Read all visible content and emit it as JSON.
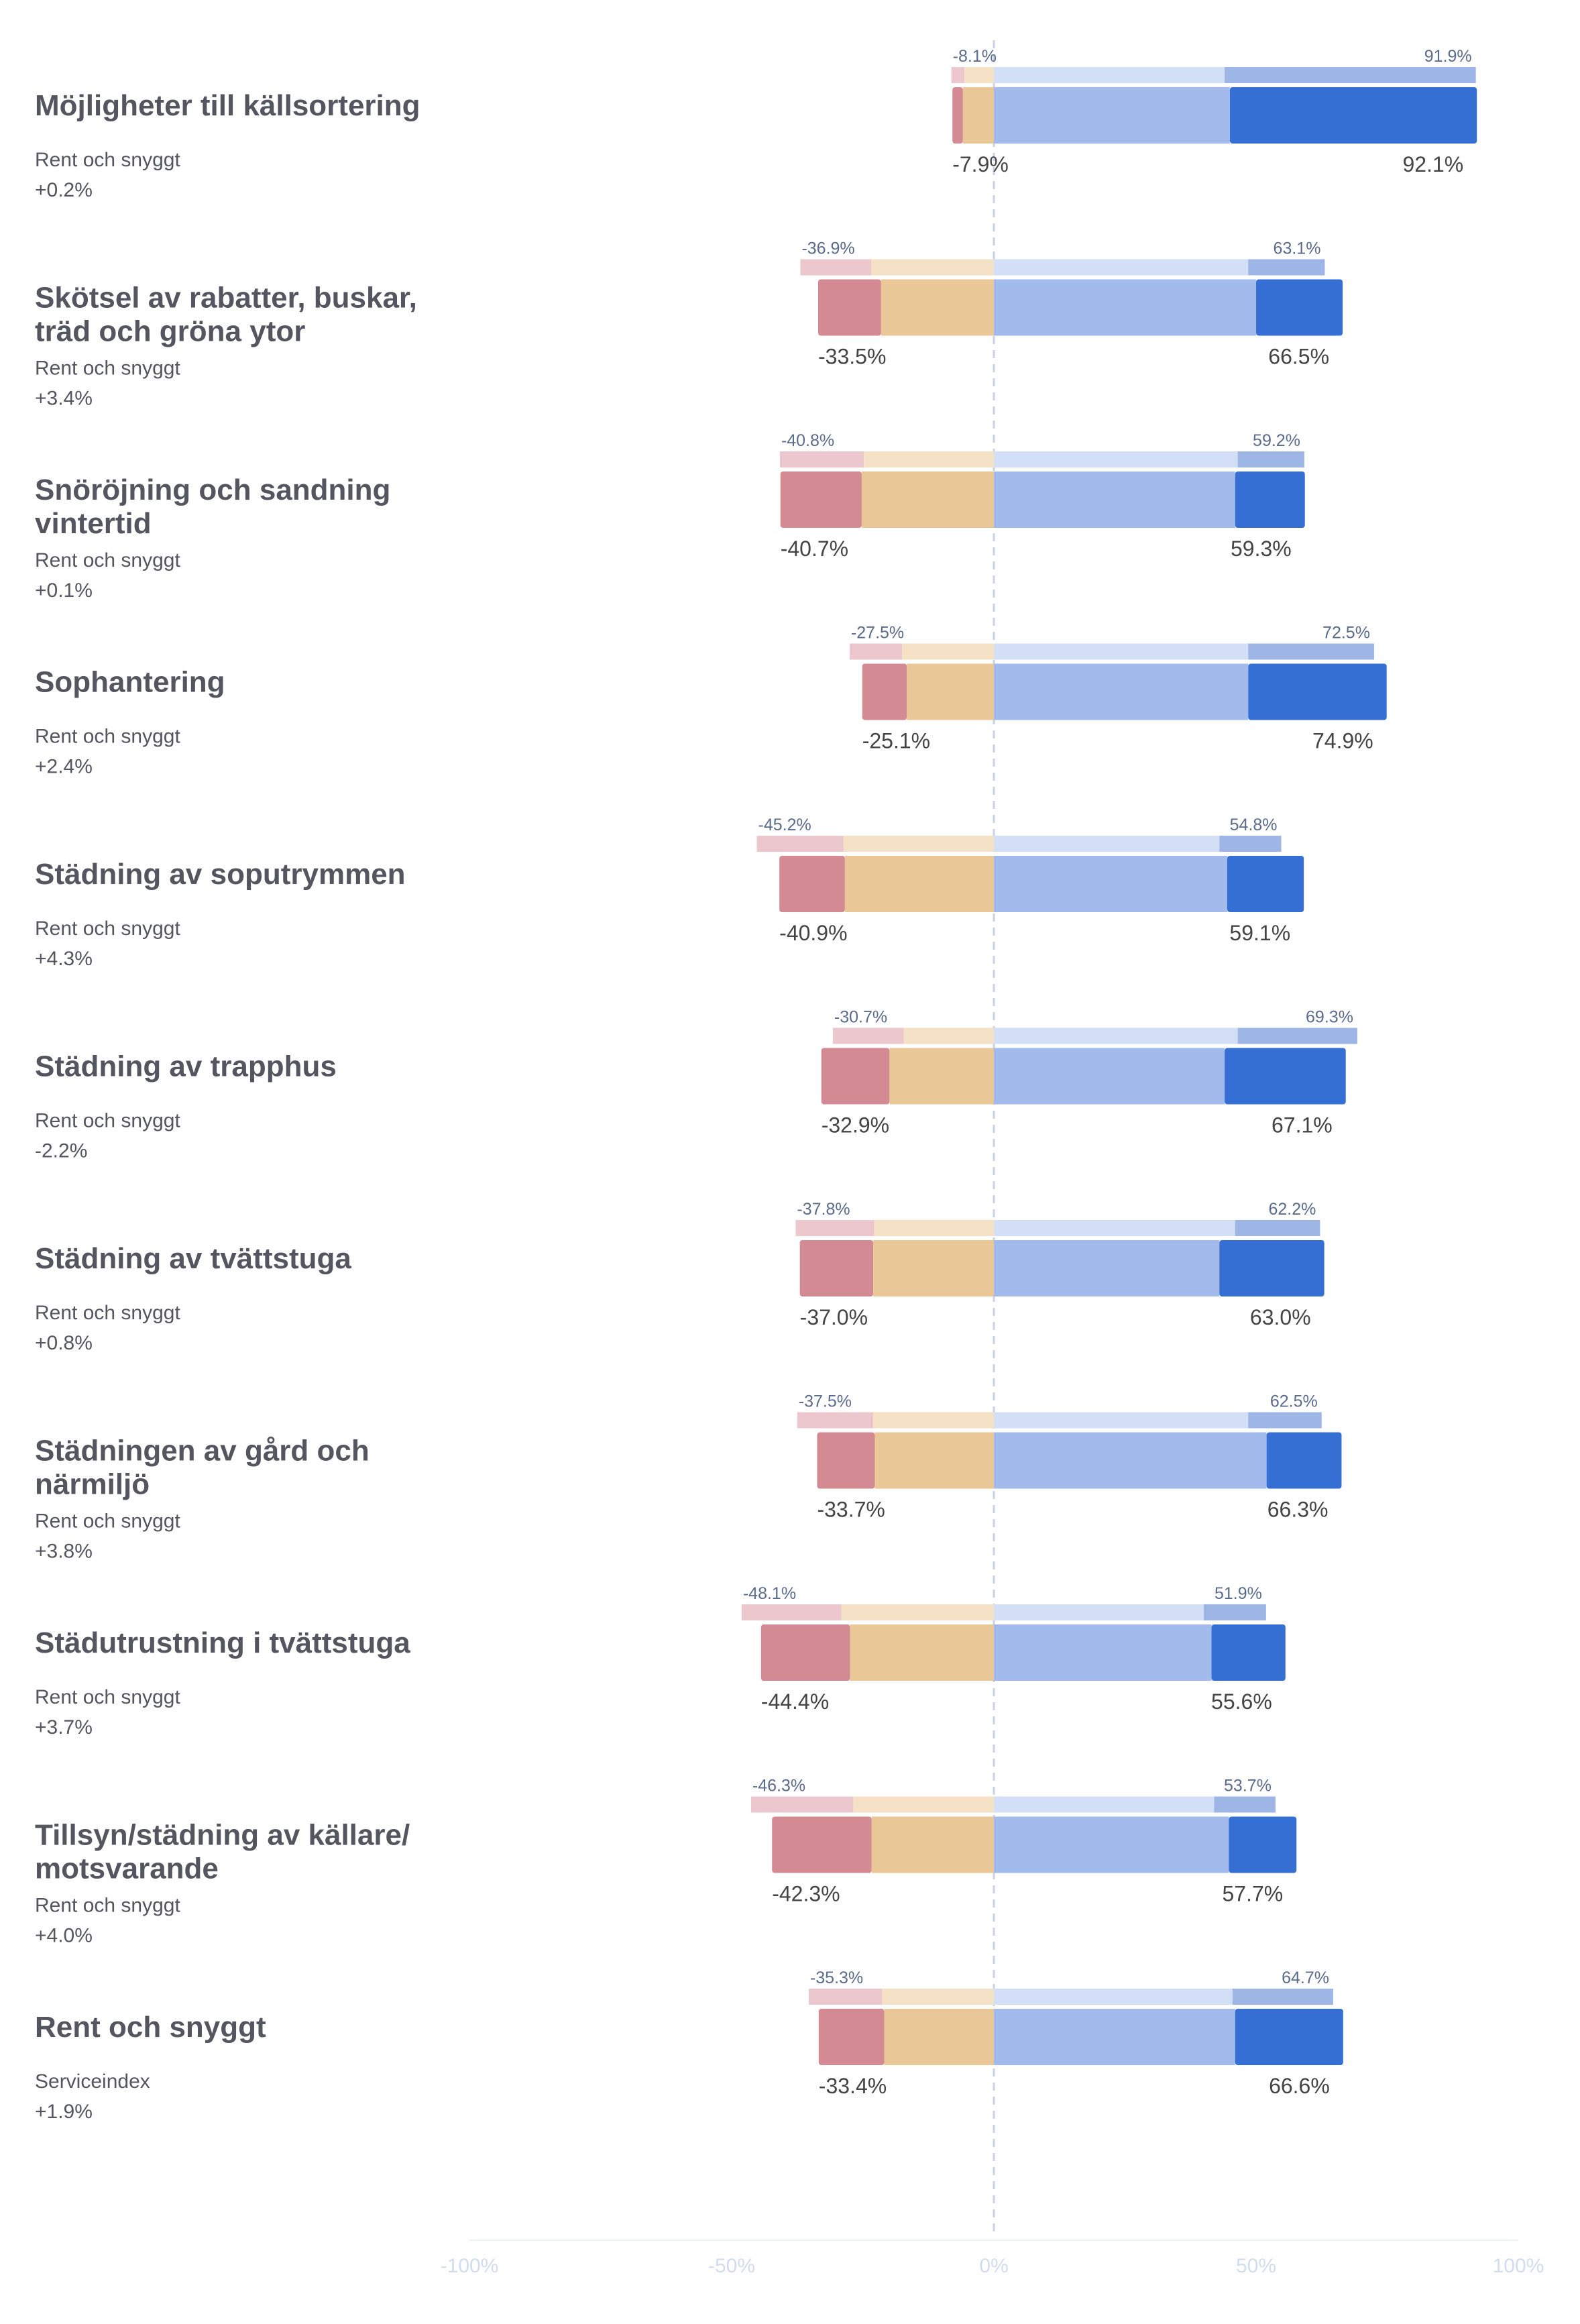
{
  "colors": {
    "neg_dark": "#d48a92",
    "neg_mid": "#eac796",
    "pos_mid": "#a2bbec",
    "pos_dark": "#366fd4",
    "prev_neg_dark": "#ecc7cd",
    "prev_neg_mid": "#f5e2c6",
    "prev_pos_mid": "#d2dff7",
    "prev_pos_dark": "#9db6e6",
    "axis_tick": "#d2dcef",
    "zero_line": "#c8d2e6"
  },
  "chart_data": {
    "type": "diverging-stacked-bar",
    "xlim": [
      -100,
      100
    ],
    "ticks": [
      "-100%",
      "-50%",
      "0%",
      "50%",
      "100%"
    ],
    "tick_values": [
      -100,
      -50,
      0,
      50,
      100
    ],
    "rows": [
      {
        "title": [
          "Möjligheter till källsortering"
        ],
        "subtitle": "Rent och snyggt",
        "delta": "+0.2%",
        "current": {
          "neg_dark": 2.0,
          "neg_total": 7.9,
          "pos_mid": 45.0,
          "pos_total": 92.1,
          "neg_label": "-7.9%",
          "pos_label": "92.1%"
        },
        "previous": {
          "neg_dark": 2.5,
          "neg_total": 8.1,
          "pos_mid": 44.0,
          "pos_total": 91.9,
          "neg_label": "-8.1%",
          "pos_label": "91.9%"
        }
      },
      {
        "title": [
          "Skötsel av rabatter, buskar,",
          "träd och gröna ytor"
        ],
        "subtitle": "Rent och snyggt",
        "delta": "+3.4%",
        "current": {
          "neg_dark": 12.0,
          "neg_total": 33.5,
          "pos_mid": 50.0,
          "pos_total": 66.5,
          "neg_label": "-33.5%",
          "pos_label": "66.5%"
        },
        "previous": {
          "neg_dark": 13.5,
          "neg_total": 36.9,
          "pos_mid": 48.5,
          "pos_total": 63.1,
          "neg_label": "-36.9%",
          "pos_label": "63.1%"
        }
      },
      {
        "title": [
          "Snöröjning och sandning",
          "vintertid"
        ],
        "subtitle": "Rent och snyggt",
        "delta": "+0.1%",
        "current": {
          "neg_dark": 15.5,
          "neg_total": 40.7,
          "pos_mid": 46.0,
          "pos_total": 59.3,
          "neg_label": "-40.7%",
          "pos_label": "59.3%"
        },
        "previous": {
          "neg_dark": 16.0,
          "neg_total": 40.8,
          "pos_mid": 46.5,
          "pos_total": 59.2,
          "neg_label": "-40.8%",
          "pos_label": "59.2%"
        }
      },
      {
        "title": [
          "Sophantering"
        ],
        "subtitle": "Rent och snyggt",
        "delta": "+2.4%",
        "current": {
          "neg_dark": 8.5,
          "neg_total": 25.1,
          "pos_mid": 48.5,
          "pos_total": 74.9,
          "neg_label": "-25.1%",
          "pos_label": "74.9%"
        },
        "previous": {
          "neg_dark": 10.0,
          "neg_total": 27.5,
          "pos_mid": 48.5,
          "pos_total": 72.5,
          "neg_label": "-27.5%",
          "pos_label": "72.5%"
        }
      },
      {
        "title": [
          "Städning av soputrymmen"
        ],
        "subtitle": "Rent och snyggt",
        "delta": "+4.3%",
        "current": {
          "neg_dark": 12.5,
          "neg_total": 40.9,
          "pos_mid": 44.5,
          "pos_total": 59.1,
          "neg_label": "-40.9%",
          "pos_label": "59.1%"
        },
        "previous": {
          "neg_dark": 16.5,
          "neg_total": 45.2,
          "pos_mid": 43.0,
          "pos_total": 54.8,
          "neg_label": "-45.2%",
          "pos_label": "54.8%"
        }
      },
      {
        "title": [
          "Städning av trapphus"
        ],
        "subtitle": "Rent och snyggt",
        "delta": "-2.2%",
        "current": {
          "neg_dark": 13.0,
          "neg_total": 32.9,
          "pos_mid": 44.0,
          "pos_total": 67.1,
          "neg_label": "-32.9%",
          "pos_label": "67.1%"
        },
        "previous": {
          "neg_dark": 13.5,
          "neg_total": 30.7,
          "pos_mid": 46.5,
          "pos_total": 69.3,
          "neg_label": "-30.7%",
          "pos_label": "69.3%"
        }
      },
      {
        "title": [
          "Städning av tvättstuga"
        ],
        "subtitle": "Rent och snyggt",
        "delta": "+0.8%",
        "current": {
          "neg_dark": 14.0,
          "neg_total": 37.0,
          "pos_mid": 43.0,
          "pos_total": 63.0,
          "neg_label": "-37.0%",
          "pos_label": "63.0%"
        },
        "previous": {
          "neg_dark": 15.0,
          "neg_total": 37.8,
          "pos_mid": 46.0,
          "pos_total": 62.2,
          "neg_label": "-37.8%",
          "pos_label": "62.2%"
        }
      },
      {
        "title": [
          "Städningen av gård och",
          "närmiljö"
        ],
        "subtitle": "Rent och snyggt",
        "delta": "+3.8%",
        "current": {
          "neg_dark": 11.0,
          "neg_total": 33.7,
          "pos_mid": 52.0,
          "pos_total": 66.3,
          "neg_label": "-33.7%",
          "pos_label": "66.3%"
        },
        "previous": {
          "neg_dark": 14.5,
          "neg_total": 37.5,
          "pos_mid": 48.5,
          "pos_total": 62.5,
          "neg_label": "-37.5%",
          "pos_label": "62.5%"
        }
      },
      {
        "title": [
          "Städutrustning i tvättstuga"
        ],
        "subtitle": "Rent och snyggt",
        "delta": "+3.7%",
        "current": {
          "neg_dark": 17.0,
          "neg_total": 44.4,
          "pos_mid": 41.5,
          "pos_total": 55.6,
          "neg_label": "-44.4%",
          "pos_label": "55.6%"
        },
        "previous": {
          "neg_dark": 19.0,
          "neg_total": 48.1,
          "pos_mid": 40.0,
          "pos_total": 51.9,
          "neg_label": "-48.1%",
          "pos_label": "51.9%"
        }
      },
      {
        "title": [
          "Tillsyn/städning av källare/",
          "motsvarande"
        ],
        "subtitle": "Rent och snyggt",
        "delta": "+4.0%",
        "current": {
          "neg_dark": 19.0,
          "neg_total": 42.3,
          "pos_mid": 44.8,
          "pos_total": 57.7,
          "neg_label": "-42.3%",
          "pos_label": "57.7%"
        },
        "previous": {
          "neg_dark": 19.5,
          "neg_total": 46.3,
          "pos_mid": 42.0,
          "pos_total": 53.7,
          "neg_label": "-46.3%",
          "pos_label": "53.7%"
        }
      },
      {
        "title": [
          "Rent och snyggt"
        ],
        "subtitle": "Serviceindex",
        "delta": "+1.9%",
        "current": {
          "neg_dark": 12.5,
          "neg_total": 33.4,
          "pos_mid": 46.0,
          "pos_total": 66.6,
          "neg_label": "-33.4%",
          "pos_label": "66.6%"
        },
        "previous": {
          "neg_dark": 14.0,
          "neg_total": 35.3,
          "pos_mid": 45.5,
          "pos_total": 64.7,
          "neg_label": "-35.3%",
          "pos_label": "64.7%"
        }
      }
    ]
  }
}
